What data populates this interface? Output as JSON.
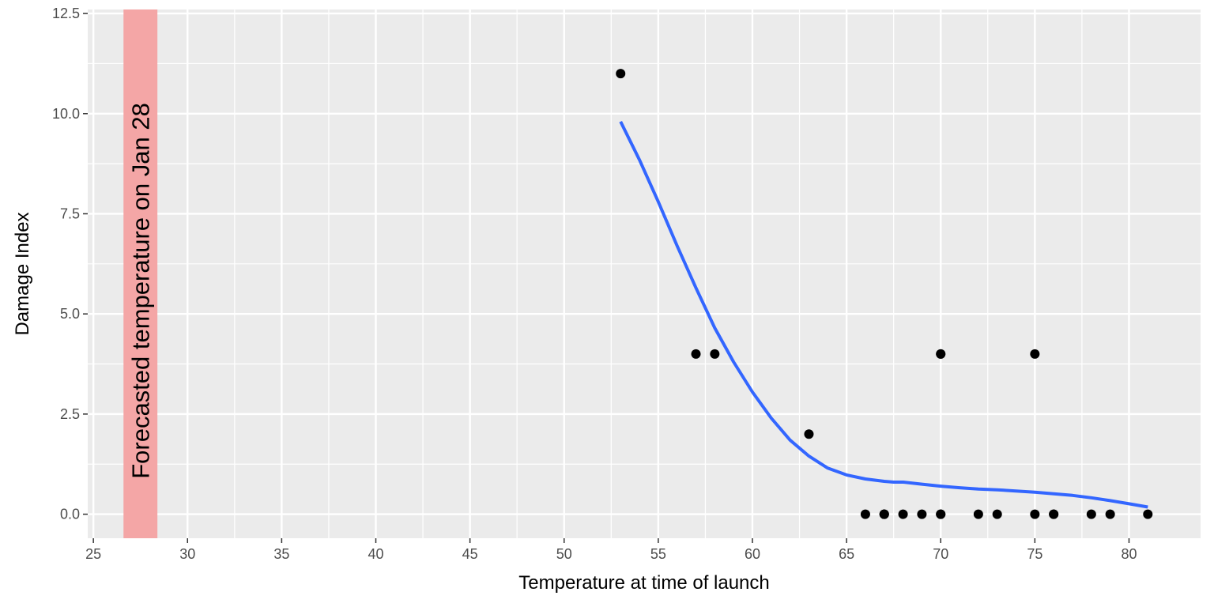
{
  "chart_data": {
    "type": "scatter",
    "title": "",
    "xlabel": "Temperature at time of launch",
    "ylabel": "Damage Index",
    "xlim": [
      24.7,
      83.8
    ],
    "ylim": [
      -0.6,
      12.6
    ],
    "x_ticks": [
      25,
      30,
      35,
      40,
      45,
      50,
      55,
      60,
      65,
      70,
      75,
      80
    ],
    "x_tick_labels": [
      "25",
      "30",
      "35",
      "40",
      "45",
      "50",
      "55",
      "60",
      "65",
      "70",
      "75",
      "80"
    ],
    "y_ticks": [
      0,
      2.5,
      5,
      7.5,
      10,
      12.5
    ],
    "y_tick_labels": [
      "0.0",
      "2.5",
      "5.0",
      "7.5",
      "10.0",
      "12.5"
    ],
    "grid": true,
    "legend": "none",
    "colors": {
      "panel": "#ebebeb",
      "grid": "#ffffff",
      "points": "#000000",
      "smooth": "#3366ff",
      "band": "#f4a6a6"
    },
    "points": {
      "x": [
        53,
        57,
        58,
        63,
        66,
        67,
        67,
        67,
        68,
        69,
        70,
        70,
        70,
        70,
        72,
        73,
        75,
        75,
        76,
        76,
        78,
        79,
        81
      ],
      "y": [
        11,
        4,
        4,
        2,
        0,
        0,
        0,
        0,
        0,
        0,
        0,
        0,
        4,
        4,
        0,
        0,
        0,
        4,
        0,
        0,
        0,
        0,
        0
      ]
    },
    "smooth_line": {
      "x": [
        53,
        54,
        55,
        56,
        57,
        58,
        59,
        60,
        61,
        62,
        63,
        64,
        65,
        66,
        67,
        67.5,
        68,
        69,
        70,
        71,
        72,
        73,
        74,
        75,
        76,
        77,
        78,
        79,
        80,
        81
      ],
      "y": [
        9.8,
        8.85,
        7.8,
        6.7,
        5.65,
        4.65,
        3.8,
        3.05,
        2.4,
        1.85,
        1.45,
        1.15,
        0.98,
        0.88,
        0.82,
        0.8,
        0.8,
        0.75,
        0.7,
        0.66,
        0.63,
        0.61,
        0.58,
        0.55,
        0.51,
        0.47,
        0.41,
        0.34,
        0.26,
        0.18
      ]
    },
    "annotation": {
      "text": "Forecasted temperature on Jan 28",
      "x_range": [
        26.6,
        28.4
      ]
    }
  }
}
